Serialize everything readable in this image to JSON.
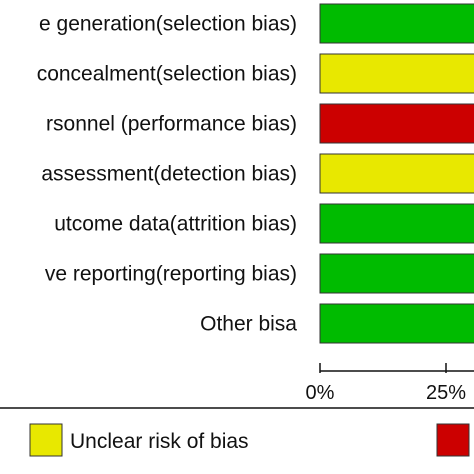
{
  "chart_data": {
    "type": "bar",
    "orientation": "horizontal",
    "stacked": true,
    "x_unit": "%",
    "xlim": [
      0,
      100
    ],
    "categories": [
      "Random sequence generation(selection bias)",
      "Allocation concealment(selection bias)",
      "Blinding of participants and personnel (performance bias)",
      "Blinding of outcome assessment(detection bias)",
      "Incomplete outcome data(attrition bias)",
      "Selective reporting(reporting bias)",
      "Other bisa"
    ],
    "visible_labels": [
      "e generation(selection bias)",
      "concealment(selection bias)",
      "rsonnel (performance bias)",
      "assessment(detection bias)",
      "utcome data(attrition bias)",
      "ve reporting(reporting bias)",
      "Other bisa"
    ],
    "first_segment_colors": [
      "#00bb00",
      "#e8e800",
      "#cc0000",
      "#e8e800",
      "#00bb00",
      "#00bb00",
      "#00bb00"
    ],
    "x_ticks": [
      "0%",
      "25%"
    ],
    "x_tick_values": [
      0,
      25
    ],
    "legend": [
      {
        "label": "Unclear risk of bias",
        "color": "#e8e800"
      },
      {
        "label": "",
        "color": "#cc0000"
      }
    ],
    "legend_position": "bottom",
    "grid": false
  }
}
